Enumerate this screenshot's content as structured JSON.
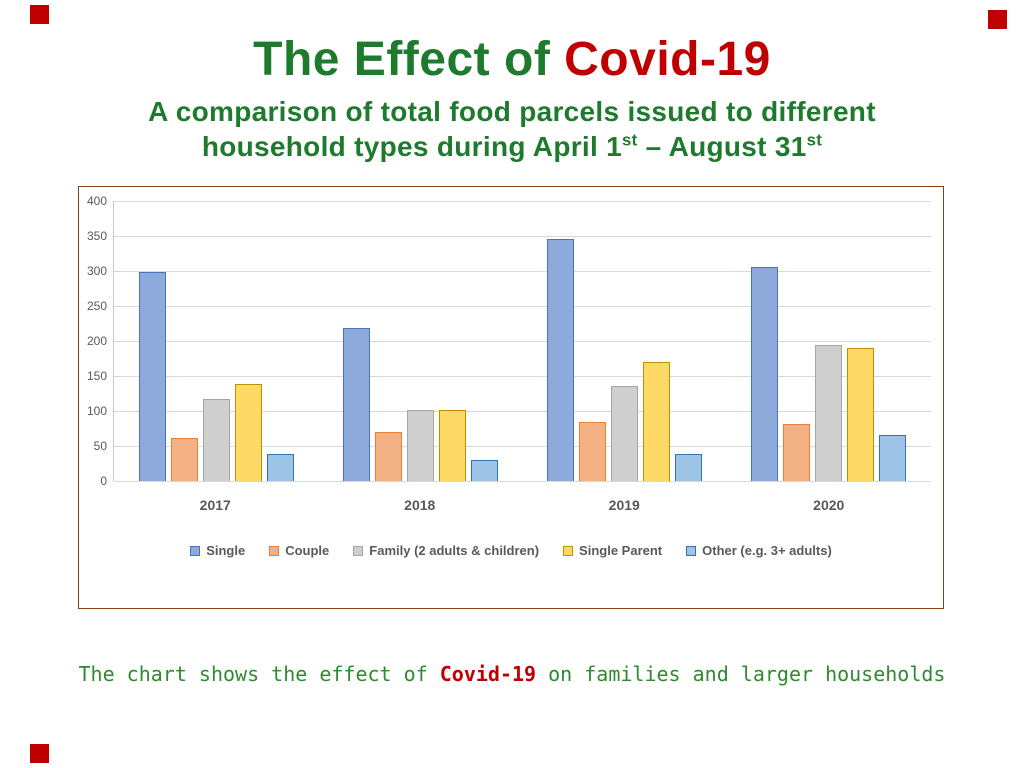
{
  "slide": {
    "title": {
      "green": "The Effect of",
      "red": "Covid-19"
    },
    "subtitle": {
      "line1": "A comparison of total food parcels issued to different",
      "line2": {
        "a": "household types during April 1",
        "a_sup": "st",
        "b": " – August 31",
        "b_sup": "st"
      }
    },
    "caption": {
      "pre": "The chart shows the effect of ",
      "highlight": "Covid-19",
      "post": " on families and larger households"
    },
    "accent_color": "#C00000",
    "title_green": "#1E7B2E",
    "caption_green": "#2E8B2E"
  },
  "chart_data": {
    "type": "bar",
    "title": "",
    "categories": [
      "2017",
      "2018",
      "2019",
      "2020"
    ],
    "series": [
      {
        "name": "Single",
        "values": [
          298,
          218,
          346,
          306
        ],
        "fill": "#8EAADB",
        "border": "#4472C4"
      },
      {
        "name": "Couple",
        "values": [
          62,
          70,
          84,
          81
        ],
        "fill": "#F4B183",
        "border": "#ED7D31"
      },
      {
        "name": "Family (2 adults & children)",
        "values": [
          117,
          101,
          135,
          194
        ],
        "fill": "#CFCFCF",
        "border": "#A5A5A5"
      },
      {
        "name": "Single Parent",
        "values": [
          139,
          101,
          170,
          190
        ],
        "fill": "#FFD966",
        "border": "#BF8F00"
      },
      {
        "name": "Other (e.g. 3+ adults)",
        "values": [
          38,
          30,
          38,
          65
        ],
        "fill": "#9DC3E6",
        "border": "#2E75B6"
      }
    ],
    "xlabel": "",
    "ylabel": "",
    "ylim": [
      0,
      400
    ],
    "ytick_step": 50,
    "grid": true,
    "legend_position": "bottom",
    "axis_text_color": "#595959",
    "gridline_color": "#D9D9D9"
  }
}
